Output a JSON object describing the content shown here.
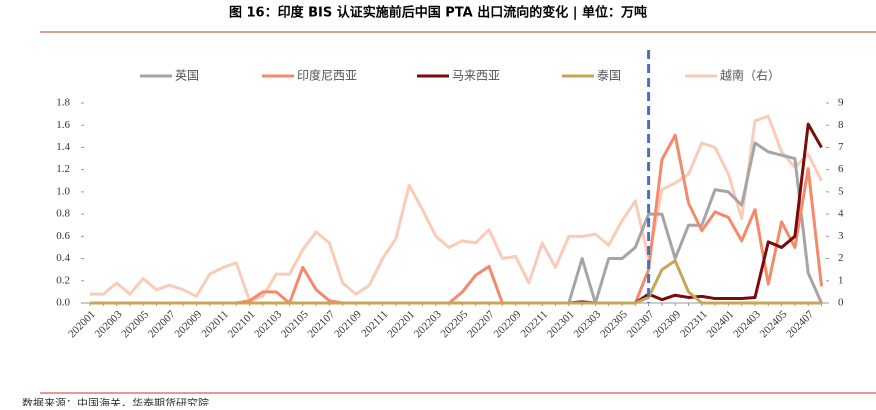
{
  "chart_data": {
    "type": "line",
    "title": "图 16：印度 BIS 认证实施前后中国 PTA 出口流向的变化 | 单位：万吨",
    "source": "数据来源：中国海关，华泰期货研究院",
    "categories": [
      "202001",
      null,
      "202003",
      null,
      "202005",
      null,
      "202007",
      null,
      "202009",
      null,
      "202011",
      null,
      "202101",
      null,
      "202103",
      null,
      "202105",
      null,
      "202107",
      null,
      "202109",
      null,
      "202111",
      null,
      "202201",
      null,
      "202203",
      null,
      "202205",
      null,
      "202207",
      null,
      "202209",
      null,
      "202211",
      null,
      "202301",
      null,
      "202303",
      null,
      "202305",
      null,
      "202307",
      null,
      "202309",
      null,
      "202311",
      null,
      "202401",
      null,
      "202403",
      null,
      "202405",
      null,
      "202407",
      null
    ],
    "series": [
      {
        "name": "英国",
        "color": "#a5a5a5",
        "values": [
          0,
          0,
          0,
          0,
          0,
          0,
          0,
          0,
          0,
          0,
          0,
          0,
          0,
          0,
          0,
          0,
          0,
          0,
          0,
          0,
          0,
          0,
          0,
          0,
          0,
          0,
          0,
          0,
          0,
          0,
          0,
          0,
          0,
          0,
          0,
          0,
          0,
          0.4,
          0,
          0.4,
          0.4,
          0.5,
          0.8,
          0.8,
          0.4,
          0.7,
          0.7,
          1.02,
          1.0,
          0.88,
          1.44,
          1.36,
          1.33,
          1.3,
          0.27,
          0
        ]
      },
      {
        "name": "印度尼西亚",
        "color": "#f4896b",
        "values": [
          0,
          0,
          0,
          0,
          0,
          0,
          0,
          0,
          0,
          0,
          0,
          0,
          0.02,
          0.1,
          0.1,
          0,
          0.32,
          0.12,
          0.02,
          0,
          0,
          0,
          0,
          0,
          0,
          0,
          0,
          0,
          0.1,
          0.25,
          0.33,
          0,
          0,
          0,
          0,
          0,
          0,
          0,
          0,
          0,
          0,
          0,
          0.3,
          1.29,
          1.51,
          0.9,
          0.65,
          0.82,
          0.77,
          0.56,
          0.84,
          0.17,
          0.73,
          0.5,
          1.21,
          0.15
        ]
      },
      {
        "name": "马来西亚",
        "color": "#7b0a0a",
        "values": [
          0,
          0,
          0,
          0,
          0,
          0,
          0,
          0,
          0,
          0,
          0,
          0,
          0,
          0,
          0,
          0,
          0,
          0,
          0,
          0,
          0,
          0,
          0,
          0,
          0,
          0,
          0,
          0,
          0,
          0,
          0,
          0,
          0,
          0,
          0,
          0,
          0,
          0.01,
          0,
          0,
          0,
          0,
          0.08,
          0.03,
          0.07,
          0.05,
          0.06,
          0.04,
          0.04,
          0.04,
          0.05,
          0.55,
          0.5,
          0.6,
          1.61,
          1.4
        ]
      },
      {
        "name": "泰国",
        "color": "#c9a55a",
        "values": [
          0,
          0,
          0,
          0,
          0,
          0,
          0,
          0,
          0,
          0,
          0,
          0,
          0,
          0,
          0,
          0,
          0,
          0,
          0,
          0,
          0,
          0,
          0,
          0,
          0,
          0,
          0,
          0,
          0,
          0,
          0,
          0,
          0,
          0,
          0,
          0,
          0,
          0,
          0,
          0,
          0,
          0,
          0.05,
          0.3,
          0.38,
          0.1,
          0,
          0,
          0,
          0,
          0,
          0,
          0,
          0,
          0,
          0
        ]
      },
      {
        "name": "越南（右）",
        "color": "#f9cbb8",
        "axis": "y2",
        "values": [
          0.4,
          0.4,
          0.9,
          0.4,
          1.1,
          0.6,
          0.8,
          0.6,
          0.3,
          1.3,
          1.6,
          1.8,
          0.1,
          0.3,
          1.3,
          1.3,
          2.4,
          3.2,
          2.7,
          0.9,
          0.4,
          0.8,
          2.0,
          2.9,
          5.3,
          4.2,
          3.0,
          2.5,
          2.8,
          2.7,
          3.3,
          2.0,
          2.1,
          0.9,
          2.7,
          1.6,
          3.0,
          3.0,
          3.1,
          2.6,
          3.7,
          4.6,
          2.0,
          5.1,
          5.4,
          5.8,
          7.2,
          7.0,
          5.8,
          3.8,
          8.2,
          8.4,
          6.8,
          6.1,
          6.7,
          5.5
        ]
      }
    ],
    "ylim": [
      0,
      1.8
    ],
    "yticks": [
      {
        "value": 0,
        "label": "0.0"
      },
      0.2,
      0.4,
      0.6,
      0.8,
      {
        "value": 1,
        "label": "1.0"
      },
      1.2,
      1.4,
      1.6,
      1.8
    ],
    "y2lim": [
      0,
      9
    ],
    "y2ticks": [
      0,
      1,
      2,
      3,
      4,
      5,
      6,
      7,
      8,
      9
    ],
    "legend": "top",
    "reference_line": {
      "x": "202307",
      "color": "#4472c4",
      "style": "dashed"
    }
  }
}
